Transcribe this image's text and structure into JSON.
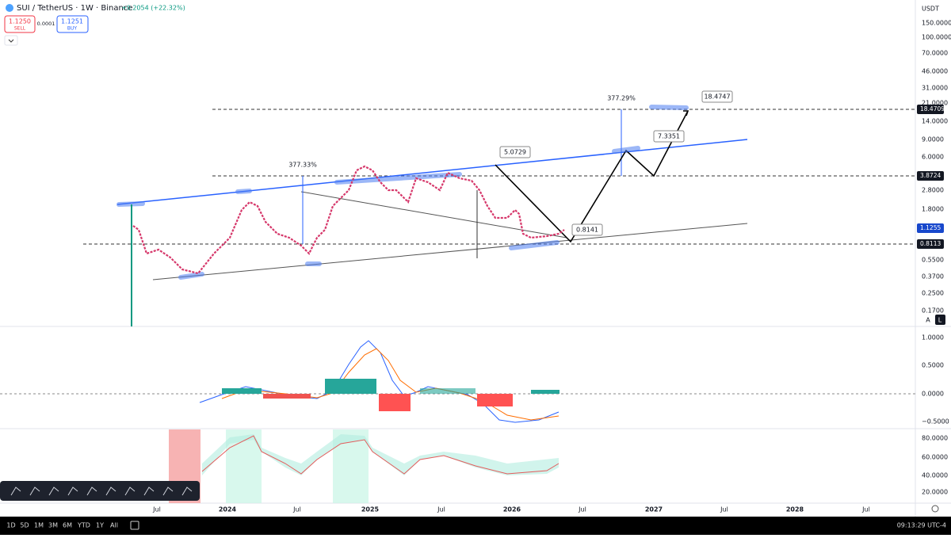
{
  "header": {
    "symbol": "SUI / TetherUS · 1W · Binance",
    "change": "+0.2054 (+22.32%)",
    "sell_price": "1.1250",
    "sell": "SELL",
    "spread": "0.0001",
    "buy_price": "1.1251",
    "buy": "BUY"
  },
  "currency": "USDT",
  "price_axis": [
    "150.0000",
    "100.0000",
    "70.0000",
    "46.0000",
    "31.0000",
    "21.0000",
    "14.0000",
    "9.0000",
    "6.0000",
    "2.8000",
    "1.8000",
    "0.5500",
    "0.3700",
    "0.2500",
    "0.1700"
  ],
  "price_badges": [
    "18.4709",
    "3.8724",
    "1.1255",
    "0.8113"
  ],
  "scale_buttons": [
    "A",
    "L"
  ],
  "macd_axis": [
    "1.0000",
    "0.5000",
    "0.0000",
    "−0.5000"
  ],
  "rsi_axis": [
    "80.0000",
    "60.0000",
    "40.0000",
    "20.0000"
  ],
  "time_axis": [
    "Jul",
    "2024",
    "Jul",
    "2025",
    "Jul",
    "2026",
    "Jul",
    "2027",
    "Jul",
    "2028",
    "Jul"
  ],
  "annotations": [
    "377.33%",
    "377.29%",
    "5.0729",
    "7.3351",
    "0.8141",
    "18.4747"
  ],
  "bottom_bar": {
    "ranges": [
      "1D",
      "5D",
      "1M",
      "3M",
      "6M",
      "YTD",
      "1Y",
      "All"
    ],
    "clock": "09:13:29 UTC-4"
  }
}
